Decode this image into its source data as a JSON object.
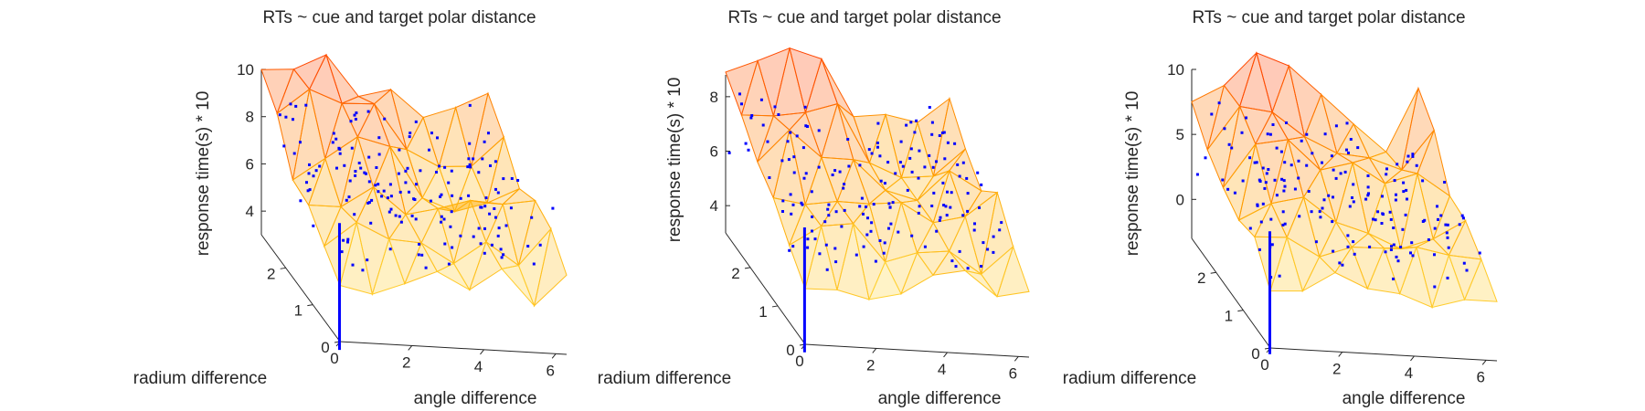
{
  "chart_data": [
    {
      "type": "3d-surface-scatter",
      "title": "RTs ~ cue and target polar distance",
      "xlabel": "angle difference",
      "ylabel": "radium difference",
      "zlabel": "response time(s) * 10",
      "xticks": [
        "0",
        "2",
        "4",
        "6"
      ],
      "yticks": [
        "0",
        "1",
        "2"
      ],
      "zticks": [
        "4",
        "6",
        "8",
        "10"
      ],
      "xlim": [
        0,
        6.3
      ],
      "ylim": [
        0,
        2.9
      ],
      "zlim": [
        3,
        10
      ],
      "seed": 11,
      "surface_colormap": [
        "#ffff66",
        "#ffa500",
        "#ff2a00"
      ],
      "point_color": "#0000ff"
    },
    {
      "type": "3d-surface-scatter",
      "title": "RTs ~ cue and target polar distance",
      "xlabel": "angle difference",
      "ylabel": "radium difference",
      "zlabel": "response time(s) * 10",
      "xticks": [
        "0",
        "2",
        "4",
        "6"
      ],
      "yticks": [
        "0",
        "1",
        "2"
      ],
      "zticks": [
        "4",
        "6",
        "8"
      ],
      "xlim": [
        0,
        6.3
      ],
      "ylim": [
        0,
        2.9
      ],
      "zlim": [
        3,
        8.8
      ],
      "seed": 23,
      "surface_colormap": [
        "#ffff66",
        "#ffa500",
        "#ff2a00"
      ],
      "point_color": "#0000ff"
    },
    {
      "type": "3d-surface-scatter",
      "title": "RTs ~ cue and target polar distance",
      "xlabel": "angle difference",
      "ylabel": "radium difference",
      "zlabel": "response time(s) * 10",
      "xticks": [
        "0",
        "2",
        "4",
        "6"
      ],
      "yticks": [
        "0",
        "1",
        "2"
      ],
      "zticks": [
        "0",
        "5",
        "10"
      ],
      "xlim": [
        0,
        6.3
      ],
      "ylim": [
        0,
        2.9
      ],
      "zlim": [
        -3,
        10
      ],
      "seed": 37,
      "surface_colormap": [
        "#ffff66",
        "#ffa500",
        "#ff2a00"
      ],
      "point_color": "#0000ff"
    }
  ]
}
